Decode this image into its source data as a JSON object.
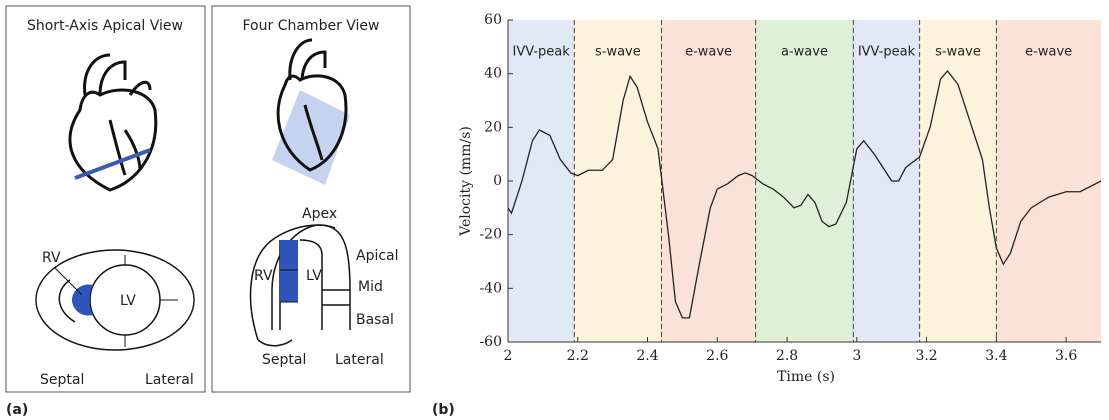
{
  "panel_a": {
    "label": "(a)",
    "short_axis": {
      "title": "Short-Axis Apical View",
      "rv": "RV",
      "lv": "LV",
      "septal": "Septal",
      "lateral": "Lateral"
    },
    "four_chamber": {
      "title": "Four Chamber View",
      "apex": "Apex",
      "apical": "Apical",
      "mid": "Mid",
      "basal": "Basal",
      "rv": "RV",
      "lv": "LV",
      "septal": "Septal",
      "lateral": "Lateral"
    }
  },
  "chart_data": {
    "type": "line",
    "label": "(b)",
    "x_label": "Time (s)",
    "y_label": "Velocity (mm/s)",
    "xlim": [
      2,
      3.7
    ],
    "ylim": [
      -60,
      60
    ],
    "xticks": [
      2,
      2.2,
      2.4,
      2.6,
      2.8,
      3,
      3.2,
      3.4,
      3.6
    ],
    "yticks": [
      -60,
      -40,
      -20,
      0,
      20,
      40,
      60
    ],
    "boundaries": [
      2.19,
      2.44,
      2.71,
      2.99,
      3.18,
      3.4
    ],
    "phases": [
      {
        "name": "IVV-peak",
        "color": "#e2e8f6"
      },
      {
        "name": "s-wave",
        "color": "#fdf3dd"
      },
      {
        "name": "e-wave",
        "color": "#fbe2d8"
      },
      {
        "name": "a-wave",
        "color": "#dff0d9"
      },
      {
        "name": "IVV-peak",
        "color": "#e2e8f6"
      },
      {
        "name": "s-wave",
        "color": "#fdf3dd"
      },
      {
        "name": "e-wave",
        "color": "#fbe2d8"
      }
    ],
    "series": [
      {
        "color": "#222222",
        "x": [
          2.0,
          2.01,
          2.04,
          2.07,
          2.09,
          2.12,
          2.15,
          2.18,
          2.2,
          2.23,
          2.27,
          2.3,
          2.33,
          2.35,
          2.37,
          2.4,
          2.43,
          2.46,
          2.48,
          2.5,
          2.52,
          2.55,
          2.58,
          2.6,
          2.63,
          2.66,
          2.68,
          2.7,
          2.73,
          2.76,
          2.79,
          2.82,
          2.84,
          2.86,
          2.88,
          2.9,
          2.92,
          2.94,
          2.97,
          3.0,
          3.02,
          3.05,
          3.08,
          3.1,
          3.12,
          3.14,
          3.18,
          3.21,
          3.24,
          3.26,
          3.29,
          3.33,
          3.36,
          3.38,
          3.4,
          3.42,
          3.44,
          3.47,
          3.5,
          3.55,
          3.6,
          3.64,
          3.67,
          3.7
        ],
        "values": [
          -10,
          -12,
          0,
          15,
          19,
          17,
          8,
          3,
          2,
          4,
          4,
          8,
          30,
          39,
          35,
          22,
          12,
          -20,
          -45,
          -51,
          -51,
          -30,
          -10,
          -3,
          -1,
          2,
          3,
          2,
          -1,
          -3,
          -6,
          -10,
          -9,
          -5,
          -8,
          -15,
          -17,
          -16,
          -8,
          12,
          15,
          10,
          4,
          0,
          0,
          5,
          9,
          20,
          38,
          41,
          36,
          20,
          8,
          -10,
          -25,
          -31,
          -27,
          -15,
          -10,
          -6,
          -4,
          -4,
          -2,
          0
        ]
      }
    ]
  }
}
